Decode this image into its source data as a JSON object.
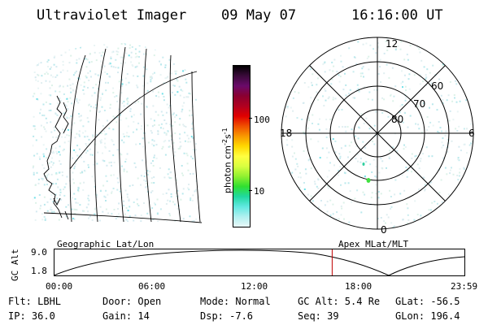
{
  "header": {
    "instrument": "Ultraviolet Imager",
    "date": "09 May 07",
    "time": "16:16:00 UT"
  },
  "colorbar": {
    "unit_prefix": "photon cm",
    "unit_exp1": "-2",
    "unit_s": "s",
    "unit_exp2": "-1",
    "tick_labels": [
      "100",
      "10"
    ],
    "colors_top_to_bottom": [
      "#000000",
      "#3a0a3a",
      "#6a0a6a",
      "#8a0030",
      "#b00020",
      "#e00000",
      "#f05000",
      "#f89800",
      "#ffd800",
      "#ffff40",
      "#d8ff40",
      "#90f030",
      "#30e030",
      "#20d8a0",
      "#60e8e0",
      "#b0f0f0",
      "#e8f8f8"
    ]
  },
  "polar_plot": {
    "mlt_labels": {
      "top": "12",
      "left": "18",
      "right": "6",
      "bottom": "0"
    },
    "lat_labels": [
      "60",
      "70",
      "80"
    ]
  },
  "timeline": {
    "left_title": "Geographic Lat/Lon",
    "right_title": "Apex MLat/MLT",
    "axis_label": "GC Alt",
    "y_ticks": [
      "9.0",
      "1.8"
    ],
    "x_ticks": [
      "00:00",
      "06:00",
      "12:00",
      "18:00",
      "23:59"
    ],
    "current_time_fraction": 0.678
  },
  "info": {
    "flt": "Flt: LBHL",
    "ip": "IP: 36.0",
    "door": "Door: Open",
    "gain": "Gain: 14",
    "mode": "Mode: Normal",
    "dsp": "Dsp:   -7.6",
    "gc_alt": "GC Alt: 5.4 Re",
    "seq": "Seq: 39",
    "glat": "GLat: -56.5",
    "glon": "GLon: 196.4"
  }
}
